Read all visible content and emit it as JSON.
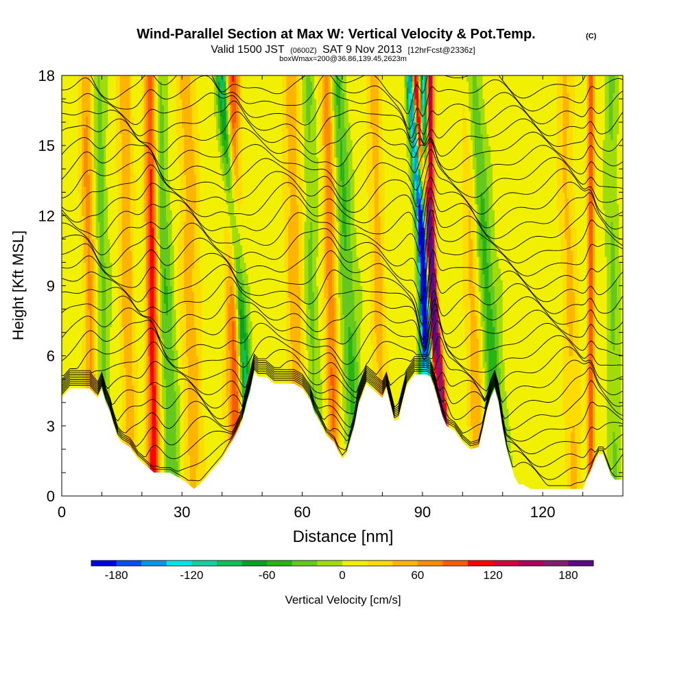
{
  "header": {
    "title": "Wind-Parallel Section at Max W: Vertical Velocity & Pot.Temp.",
    "copyright": "(C)",
    "valid_prefix": "Valid 1500 JST",
    "valid_utc": "(0600Z)",
    "valid_date": "SAT 9 Nov 2013",
    "forecast": "[12hrFcst@2336z]",
    "boxinfo": "boxWmax=200@36.86,139.45,2623m"
  },
  "chart_data": {
    "type": "heatmap",
    "xlabel": "Distance [nm]",
    "ylabel": "Height [Kft MSL]",
    "xlim": [
      0,
      140
    ],
    "ylim": [
      0,
      18
    ],
    "xticks": [
      0,
      30,
      60,
      90,
      120
    ],
    "yticks": [
      0,
      3,
      6,
      9,
      12,
      15,
      18
    ],
    "grid": false,
    "terrain_kft": [
      [
        0,
        4.2
      ],
      [
        2,
        4.6
      ],
      [
        7,
        4.6
      ],
      [
        9,
        4.2
      ],
      [
        10,
        4.6
      ],
      [
        11,
        4.0
      ],
      [
        12,
        3.6
      ],
      [
        13,
        3.0
      ],
      [
        14,
        2.5
      ],
      [
        15,
        2.3
      ],
      [
        17,
        2.1
      ],
      [
        19,
        1.6
      ],
      [
        21,
        1.3
      ],
      [
        23,
        1.0
      ],
      [
        27,
        1.0
      ],
      [
        31,
        0.6
      ],
      [
        33,
        0.3
      ],
      [
        35,
        0.6
      ],
      [
        37,
        1.0
      ],
      [
        40,
        1.6
      ],
      [
        43,
        2.5
      ],
      [
        45,
        3.2
      ],
      [
        46,
        3.9
      ],
      [
        47,
        4.5
      ],
      [
        48,
        5.3
      ],
      [
        49,
        5.1
      ],
      [
        51,
        5.1
      ],
      [
        53,
        4.8
      ],
      [
        58,
        4.8
      ],
      [
        60,
        4.6
      ],
      [
        62,
        4.1
      ],
      [
        63,
        3.6
      ],
      [
        64,
        3.3
      ],
      [
        66,
        2.6
      ],
      [
        68,
        2.3
      ],
      [
        69,
        1.9
      ],
      [
        70,
        1.6
      ],
      [
        71,
        1.8
      ],
      [
        72,
        2.4
      ],
      [
        73,
        3.0
      ],
      [
        74,
        3.9
      ],
      [
        76,
        4.8
      ],
      [
        78,
        4.5
      ],
      [
        80,
        4.2
      ],
      [
        81,
        4.6
      ],
      [
        82,
        3.9
      ],
      [
        83,
        3.2
      ],
      [
        84,
        3.3
      ],
      [
        85,
        4.0
      ],
      [
        86,
        4.7
      ],
      [
        88,
        5.2
      ],
      [
        91,
        5.2
      ],
      [
        92,
        5.1
      ],
      [
        93,
        4.6
      ],
      [
        94,
        4.0
      ],
      [
        95,
        3.4
      ],
      [
        96,
        3.0
      ],
      [
        98,
        2.8
      ],
      [
        100,
        2.3
      ],
      [
        102,
        2.0
      ],
      [
        104,
        2.1
      ],
      [
        105,
        2.8
      ],
      [
        106,
        3.6
      ],
      [
        107,
        4.2
      ],
      [
        108,
        4.6
      ],
      [
        109,
        4.0
      ],
      [
        110,
        2.9
      ],
      [
        111,
        2.0
      ],
      [
        112,
        1.4
      ],
      [
        113,
        0.8
      ],
      [
        114,
        0.5
      ],
      [
        115,
        0.5
      ],
      [
        117,
        0.3
      ],
      [
        130,
        0.3
      ],
      [
        131,
        0.7
      ],
      [
        132,
        1.1
      ],
      [
        133,
        1.5
      ],
      [
        134,
        1.8
      ],
      [
        135,
        1.8
      ],
      [
        137,
        0.9
      ],
      [
        138,
        0.7
      ],
      [
        140,
        0.7
      ]
    ],
    "updraft_bands": [
      {
        "x0": 8,
        "slope": -0.12,
        "width": 1.6,
        "w": 55
      },
      {
        "x0": 11,
        "slope": -0.1,
        "width": 1.5,
        "w": -35
      },
      {
        "x0": 17,
        "slope": -0.08,
        "width": 1.8,
        "w": 45
      },
      {
        "x0": 23,
        "slope": -0.05,
        "width": 1.5,
        "w": 110
      },
      {
        "x0": 28,
        "slope": -0.25,
        "width": 2.0,
        "w": -45
      },
      {
        "x0": 33,
        "slope": -0.1,
        "width": 2.5,
        "w": 40
      },
      {
        "x0": 43,
        "slope": -0.04,
        "width": 2.0,
        "w": 40
      },
      {
        "x0": 48,
        "slope": -0.45,
        "width": 1.5,
        "w": -115
      },
      {
        "x0": 44,
        "slope": -0.1,
        "width": 1.6,
        "w": 60
      },
      {
        "x0": 59,
        "slope": -0.1,
        "width": 2.0,
        "w": 45
      },
      {
        "x0": 63,
        "slope": -0.08,
        "width": 1.6,
        "w": -30
      },
      {
        "x0": 68,
        "slope": -0.1,
        "width": 1.5,
        "w": 70
      },
      {
        "x0": 74,
        "slope": -0.3,
        "width": 2.0,
        "w": -50
      },
      {
        "x0": 80,
        "slope": -0.12,
        "width": 1.8,
        "w": 40
      },
      {
        "x0": 90,
        "slope": 0.02,
        "width": 0.9,
        "w": -140
      },
      {
        "x0": 93,
        "slope": -0.07,
        "width": 0.9,
        "w": 150
      },
      {
        "x0": 94,
        "slope": -0.4,
        "width": 1.0,
        "w": -175
      },
      {
        "x0": 97,
        "slope": -0.5,
        "width": 0.9,
        "w": 165
      },
      {
        "x0": 104,
        "slope": -0.15,
        "width": 2.0,
        "w": 45
      },
      {
        "x0": 110,
        "slope": -0.45,
        "width": 2.2,
        "w": -60
      },
      {
        "x0": 128,
        "slope": -0.15,
        "width": 2.0,
        "w": 35
      },
      {
        "x0": 132,
        "slope": 0.0,
        "width": 0.8,
        "w": 95
      },
      {
        "x0": 138,
        "slope": -0.06,
        "width": 1.5,
        "w": -30
      }
    ],
    "isentrope_count": 30,
    "colorbar": {
      "label": "Vertical Velocity [cm/s]",
      "ticks": [
        "-180",
        "-120",
        "-60",
        "0",
        "60",
        "120",
        "180"
      ],
      "min": -200,
      "max": 200,
      "step": 20,
      "colors": [
        "#0000e6",
        "#0a4ef0",
        "#0a96e6",
        "#00e6e6",
        "#14d2a0",
        "#12be5a",
        "#0aa028",
        "#28b414",
        "#64c81e",
        "#a0dc0a",
        "#f0f000",
        "#ffdc00",
        "#ffb400",
        "#ff8c00",
        "#ff5a00",
        "#ff0000",
        "#d2003c",
        "#aa005a",
        "#821e6e",
        "#5a0a82"
      ]
    }
  }
}
